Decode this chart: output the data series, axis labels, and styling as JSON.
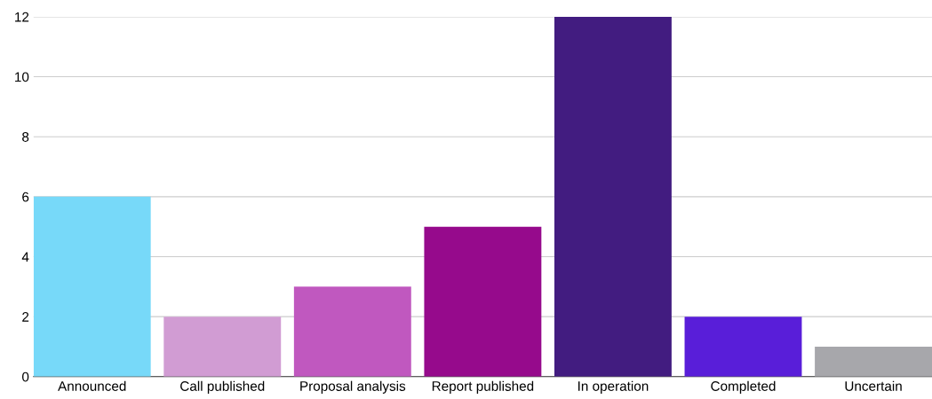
{
  "chart_data": {
    "type": "bar",
    "categories": [
      "Announced",
      "Call published",
      "Proposal analysis",
      "Report published",
      "In operation",
      "Completed",
      "Uncertain"
    ],
    "values": [
      6,
      2,
      3,
      5,
      12,
      2,
      1
    ],
    "colors": [
      "#77d9f9",
      "#d19cd3",
      "#c058bf",
      "#960a8c",
      "#421c80",
      "#591ed9",
      "#a7a7ab"
    ],
    "ylim": [
      0,
      12
    ],
    "yticks": [
      0,
      2,
      4,
      6,
      8,
      10,
      12
    ],
    "grid": "y",
    "legend": false
  }
}
